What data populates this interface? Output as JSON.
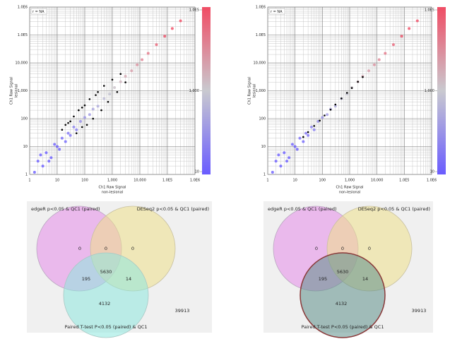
{
  "chart_data": [
    {
      "type": "scatter",
      "annotation": "r = NA",
      "xlabel": [
        "Ch1 Raw Signal",
        "non-lesional"
      ],
      "ylabel": [
        "Ch1 Raw Signal",
        "lesional"
      ],
      "log": true,
      "grid": true,
      "xlim": [
        1,
        1000000
      ],
      "ylim": [
        1,
        1000000
      ],
      "xticks": [
        1,
        10,
        100,
        {
          "value": 1000,
          "label": "1,000"
        },
        {
          "value": 10000,
          "label": "10,000"
        },
        {
          "value": 100000,
          "label": "1.0E5"
        },
        {
          "value": 1000000,
          "label": "1.0E6"
        }
      ],
      "yticks": [
        1,
        10,
        100,
        {
          "value": 1000,
          "label": "1,000"
        },
        {
          "value": 10000,
          "label": "10,000"
        },
        {
          "value": 100000,
          "label": "1.0E5"
        },
        {
          "value": 1000000,
          "label": "1.0E6"
        }
      ],
      "colorscale": [
        "#6a5cff",
        "#c9c9cf",
        "#f04c64"
      ],
      "clim": [
        10,
        100000
      ],
      "cticks": [
        10,
        {
          "value": 1000,
          "label": "1,000"
        },
        {
          "value": 100000,
          "label": "1.0E5"
        }
      ],
      "series": [
        {
          "colormap": true,
          "x": [
            1.5,
            2,
            3,
            2.5,
            5,
            4,
            6,
            8,
            12,
            10,
            15,
            20,
            25,
            30,
            40,
            50,
            70,
            100,
            150,
            200,
            300,
            500,
            800,
            1200,
            2000,
            3000,
            5000,
            8000,
            12000,
            20000,
            40000,
            80000,
            150000,
            300000
          ],
          "y": [
            1.2,
            3,
            2,
            5,
            3,
            6,
            4,
            12,
            8,
            10,
            20,
            15,
            30,
            25,
            50,
            40,
            80,
            110,
            140,
            220,
            280,
            520,
            760,
            1300,
            2100,
            3300,
            5200,
            8500,
            13000,
            22000,
            45000,
            90000,
            170000,
            320000
          ]
        },
        {
          "color": "#000000",
          "x": [
            15,
            20,
            30,
            40,
            50,
            60,
            80,
            100,
            120,
            150,
            200,
            250,
            300,
            400,
            500,
            700,
            1000,
            1500,
            2000,
            3000,
            25,
            80
          ],
          "y": [
            40,
            60,
            80,
            120,
            30,
            200,
            250,
            300,
            60,
            500,
            100,
            700,
            900,
            200,
            1500,
            400,
            2500,
            900,
            4000,
            2000,
            70,
            50
          ]
        }
      ]
    },
    {
      "type": "scatter",
      "annotation": "r = NA",
      "xlabel": [
        "Ch1 Raw Signal",
        "non-lesional"
      ],
      "ylabel": [
        "Ch1 Raw Signal",
        "lesional"
      ],
      "log": true,
      "grid": true,
      "xlim": [
        1,
        1000000
      ],
      "ylim": [
        1,
        1000000
      ],
      "xticks": [
        1,
        10,
        100,
        {
          "value": 1000,
          "label": "1,000"
        },
        {
          "value": 10000,
          "label": "10,000"
        },
        {
          "value": 100000,
          "label": "1.0E5"
        },
        {
          "value": 1000000,
          "label": "1.0E6"
        }
      ],
      "yticks": [
        1,
        10,
        100,
        {
          "value": 1000,
          "label": "1,000"
        },
        {
          "value": 10000,
          "label": "10,000"
        },
        {
          "value": 100000,
          "label": "1.0E5"
        },
        {
          "value": 1000000,
          "label": "1.0E6"
        }
      ],
      "colorscale": [
        "#6a5cff",
        "#c9c9cf",
        "#f04c64"
      ],
      "clim": [
        10,
        100000
      ],
      "cticks": [
        10,
        {
          "value": 1000,
          "label": "1,000"
        },
        {
          "value": 100000,
          "label": "1.0E5"
        }
      ],
      "series": [
        {
          "colormap": true,
          "x": [
            1.5,
            2,
            3,
            2.5,
            5,
            4,
            6,
            8,
            12,
            10,
            15,
            20,
            25,
            30,
            40,
            50,
            70,
            100,
            150,
            200,
            300,
            500,
            800,
            1200,
            2000,
            3000,
            5000,
            8000,
            12000,
            20000,
            40000,
            80000,
            150000,
            300000
          ],
          "y": [
            1.2,
            3,
            2,
            5,
            3,
            6,
            4,
            12,
            8,
            10,
            20,
            15,
            30,
            25,
            50,
            40,
            80,
            110,
            140,
            220,
            280,
            520,
            760,
            1300,
            2100,
            3300,
            5200,
            8500,
            13000,
            22000,
            45000,
            90000,
            170000,
            320000
          ]
        },
        {
          "color": "#000000",
          "x": [
            20,
            30,
            50,
            80,
            120,
            200,
            300,
            500,
            800,
            1200,
            2000,
            3000
          ],
          "y": [
            22,
            33,
            55,
            85,
            130,
            210,
            320,
            530,
            840,
            1250,
            2100,
            3100
          ]
        }
      ]
    },
    {
      "type": "venn",
      "sets": [
        {
          "name": "edgeR p<0.05 & QC1 (paired)",
          "color": "#e58ce9",
          "border": "#b9a8c0"
        },
        {
          "name": "DESeq2 p<0.05 & QC1 (paired)",
          "color": "#efe08a",
          "border": "#c8c0a0"
        },
        {
          "name": "Paired T-test P<0.05 (paired) & QC1",
          "color": "#8ee8df",
          "border": "#a8c8c4"
        }
      ],
      "intersections": [
        [
          0
        ],
        [
          1
        ],
        [
          0,
          1
        ],
        [
          0,
          1,
          2
        ],
        [
          0,
          2
        ],
        [
          1,
          2
        ],
        [
          2
        ]
      ],
      "values": [
        0,
        0,
        0,
        5630,
        195,
        14,
        4132
      ],
      "outside": 39913
    },
    {
      "type": "venn",
      "sets": [
        {
          "name": "edgeR p<0.05 & QC1 (paired)",
          "color": "#e58ce9",
          "border": "#b9a8c0"
        },
        {
          "name": "DESeq2 p<0.05 & QC1 (paired)",
          "color": "#efe08a",
          "border": "#c8c0a0"
        },
        {
          "name": "Paired T-test P<0.05 (paired) & QC1",
          "color": "#5f908a",
          "border": "#8a3a3a"
        }
      ],
      "intersections": [
        [
          0
        ],
        [
          1
        ],
        [
          0,
          1
        ],
        [
          0,
          1,
          2
        ],
        [
          0,
          2
        ],
        [
          1,
          2
        ],
        [
          2
        ]
      ],
      "values": [
        0,
        0,
        0,
        5630,
        195,
        14,
        4132
      ],
      "outside": 39913
    }
  ]
}
